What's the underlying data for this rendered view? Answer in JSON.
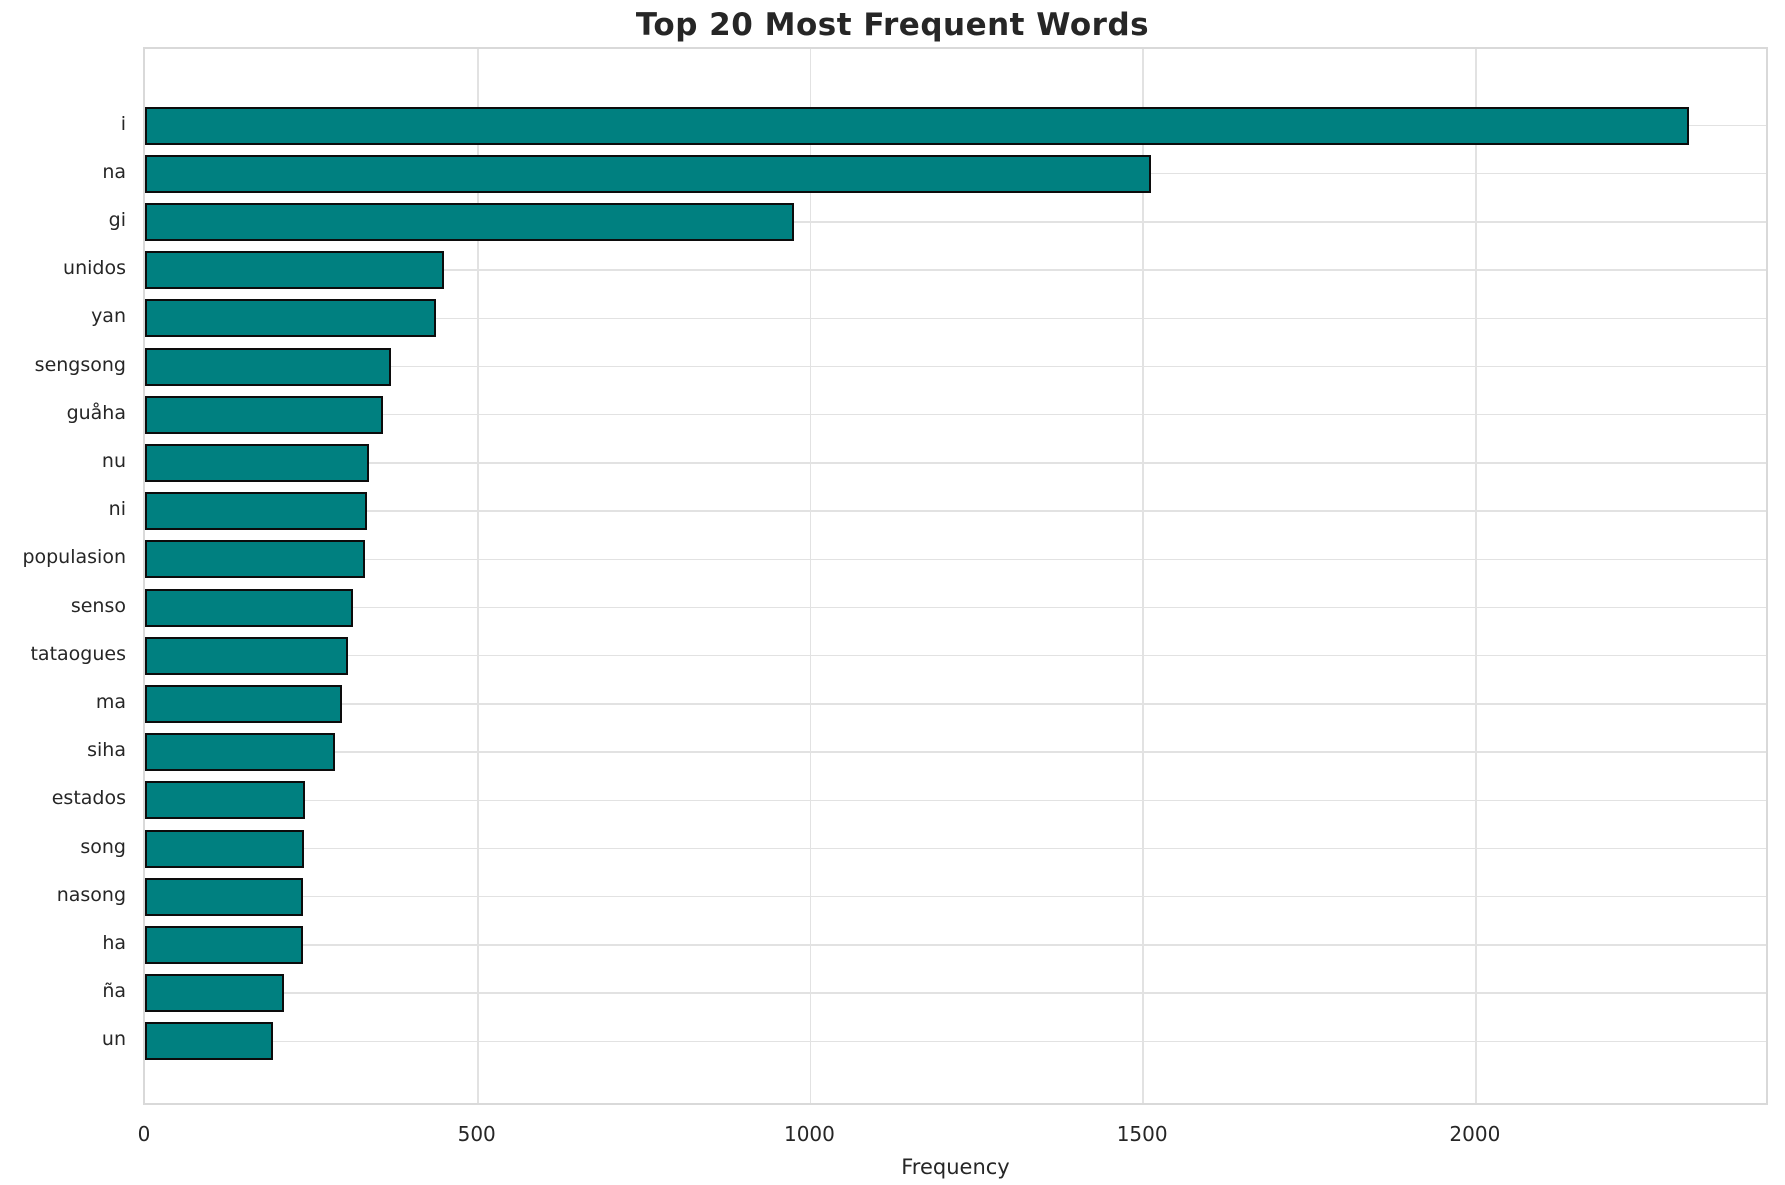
{
  "title": "Top 20 Most Frequent Words",
  "chart_data": {
    "type": "bar",
    "orientation": "horizontal",
    "title": "Top 20 Most Frequent Words",
    "xlabel": "Frequency",
    "ylabel": "",
    "categories": [
      "i",
      "na",
      "gi",
      "unidos",
      "yan",
      "sengsong",
      "guåha",
      "nu",
      "ni",
      "populasion",
      "senso",
      "tataogues",
      "ma",
      "siha",
      "estados",
      "song",
      "nasong",
      "ha",
      "ña",
      "un"
    ],
    "values": [
      2320,
      1512,
      975,
      450,
      437,
      370,
      357,
      336,
      334,
      331,
      312,
      305,
      296,
      286,
      240,
      239,
      238,
      237,
      209,
      193
    ],
    "xticks": [
      0,
      500,
      1000,
      1500,
      2000
    ],
    "xlim": [
      0,
      2436
    ],
    "grid": true,
    "legend": false,
    "bar_color": "#008080",
    "bar_edge_color": "#0c0c0c",
    "grid_color": "#e2e2e2",
    "spine_color": "#d9d9d9",
    "text_color": "#262626",
    "background_color": "#ffffff"
  }
}
